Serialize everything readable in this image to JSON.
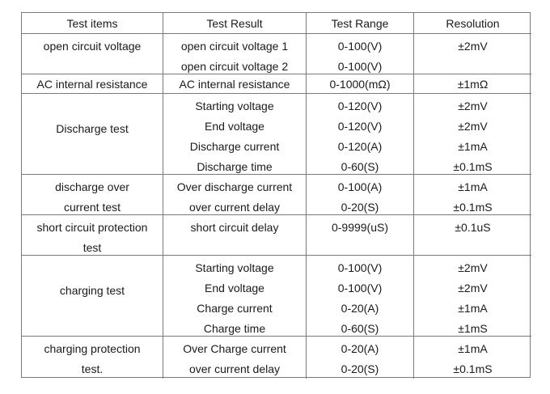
{
  "headers": [
    "Test items",
    "Test Result",
    "Test Range",
    "Resolution"
  ],
  "groups": [
    {
      "item_lines": [
        "open circuit voltage"
      ],
      "results": [
        "open circuit voltage 1",
        "open circuit voltage 2"
      ],
      "ranges": [
        "0-100(V)",
        "0-100(V)"
      ],
      "resolutions": [
        "±2mV"
      ]
    },
    {
      "item_lines": [
        "AC internal resistance"
      ],
      "results": [
        "AC internal resistance"
      ],
      "ranges": [
        "0-1000(mΩ)"
      ],
      "resolutions": [
        "±1mΩ"
      ]
    },
    {
      "item_lines": [
        "Discharge test"
      ],
      "results": [
        "Starting voltage",
        "End voltage",
        "Discharge current",
        "Discharge time"
      ],
      "ranges": [
        "0-120(V)",
        "0-120(V)",
        "0-120(A)",
        "0-60(S)"
      ],
      "resolutions": [
        "±2mV",
        "±2mV",
        "±1mA",
        "±0.1mS"
      ]
    },
    {
      "item_lines": [
        "discharge over",
        "current test"
      ],
      "results": [
        "Over discharge current",
        "over current delay"
      ],
      "ranges": [
        "0-100(A)",
        "0-20(S)"
      ],
      "resolutions": [
        "±1mA",
        "±0.1mS"
      ]
    },
    {
      "item_lines": [
        "short circuit protection",
        "test"
      ],
      "results": [
        "short circuit delay"
      ],
      "ranges": [
        "0-9999(uS)"
      ],
      "resolutions": [
        "±0.1uS"
      ]
    },
    {
      "item_lines": [
        "charging test"
      ],
      "results": [
        "Starting voltage",
        "End voltage",
        "Charge current",
        "Charge time"
      ],
      "ranges": [
        "0-100(V)",
        "0-100(V)",
        "0-20(A)",
        "0-60(S)"
      ],
      "resolutions": [
        "±2mV",
        "±2mV",
        "±1mA",
        "±1mS"
      ]
    },
    {
      "item_lines": [
        "charging protection",
        "test."
      ],
      "results": [
        "Over Charge current",
        "over current delay"
      ],
      "ranges": [
        "0-20(A)",
        "0-20(S)"
      ],
      "resolutions": [
        "±1mA",
        "±0.1mS"
      ]
    }
  ]
}
